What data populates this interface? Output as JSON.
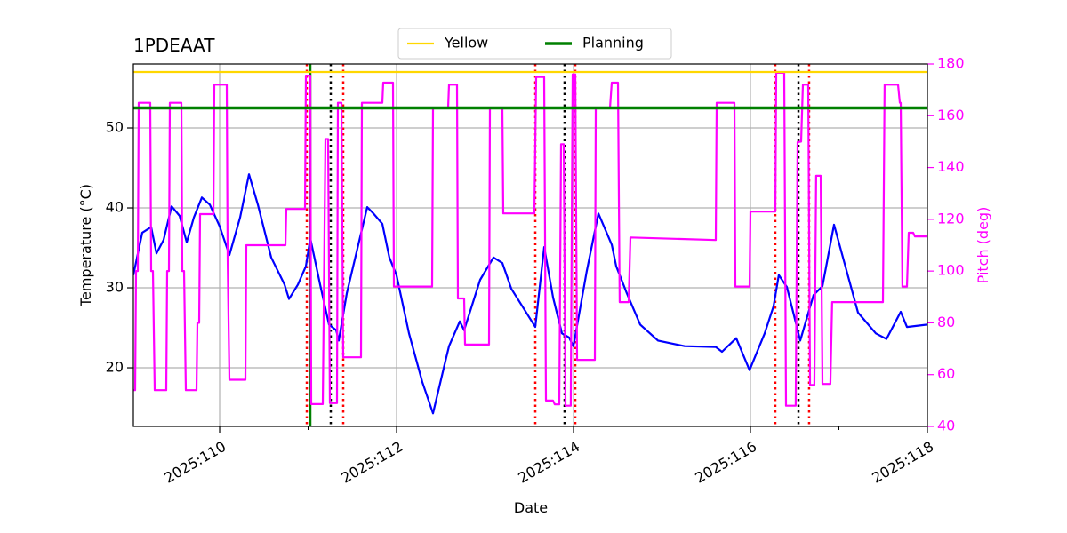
{
  "chart_data": {
    "type": "line",
    "title": "1PDEAAT",
    "xlabel": "Date",
    "ylabel": "Temperature (°C)",
    "y2label": "Pitch (deg)",
    "y2color": "#ff00ff",
    "xlim": [
      109.025,
      118
    ],
    "xticks": [
      {
        "value": 110,
        "label": "2025:110"
      },
      {
        "value": 112,
        "label": "2025:112"
      },
      {
        "value": 114,
        "label": "2025:114"
      },
      {
        "value": 116,
        "label": "2025:116"
      },
      {
        "value": 118,
        "label": "2025:118"
      }
    ],
    "xminorticks": [
      111,
      113,
      115,
      117
    ],
    "ylim": [
      12.67,
      58
    ],
    "yticks": [
      20,
      30,
      40,
      50
    ],
    "y2lim": [
      40,
      180
    ],
    "y2ticks": [
      40,
      60,
      80,
      100,
      120,
      140,
      160,
      180
    ],
    "grid": true,
    "legend": "upper center",
    "hlines": [
      {
        "name": "Yellow",
        "color": "#ffd700",
        "value": 57
      },
      {
        "name": "Planning",
        "color": "#008000",
        "value": 52.5
      }
    ],
    "vlines": [
      {
        "color": "#ff0000",
        "style": "dotted",
        "x": [
          110.985,
          111.397,
          113.568,
          114.02,
          116.281,
          116.663
        ]
      },
      {
        "color": "#000000",
        "style": "dotted",
        "x": [
          111.256,
          113.899,
          116.543
        ]
      },
      {
        "color": "#008000",
        "style": "solid",
        "x": [
          111.025
        ]
      }
    ],
    "lines": [
      {
        "color": "#0000ff",
        "axis": "y",
        "x": [
          109.025,
          109.126,
          109.226,
          109.286,
          109.367,
          109.457,
          109.548,
          109.628,
          109.708,
          109.799,
          109.889,
          110.0,
          110.11,
          110.231,
          110.332,
          110.432,
          110.583,
          110.734,
          110.784,
          110.884,
          110.975,
          111.025,
          111.136,
          111.236,
          111.317,
          111.347,
          111.437,
          111.568,
          111.668,
          111.739,
          111.839,
          111.919,
          111.999,
          112.141,
          112.291,
          112.412,
          112.543,
          112.593,
          112.714,
          112.764,
          112.945,
          113.095,
          113.196,
          113.296,
          113.568,
          113.668,
          113.769,
          113.869,
          113.949,
          113.999,
          114.15,
          114.281,
          114.432,
          114.482,
          114.603,
          114.754,
          114.955,
          115.256,
          115.608,
          115.678,
          115.839,
          115.99,
          116.161,
          116.261,
          116.321,
          116.412,
          116.563,
          116.714,
          116.814,
          116.945,
          117.065,
          117.216,
          117.417,
          117.538,
          117.698,
          117.769,
          118.0
        ],
        "values": [
          31.6,
          36.9,
          37.6,
          34.3,
          36,
          40.2,
          39,
          35.7,
          38.8,
          41.3,
          40.4,
          37.7,
          34.1,
          38.8,
          44.2,
          40.4,
          33.8,
          30.4,
          28.6,
          30.4,
          32.7,
          36.2,
          30.4,
          25.4,
          24.7,
          23.4,
          29.3,
          35.4,
          40.1,
          39.3,
          38,
          33.8,
          31.6,
          24.3,
          18.2,
          14.3,
          20.4,
          22.7,
          25.8,
          24.7,
          31,
          33.8,
          33.1,
          29.9,
          25.1,
          35.1,
          28.8,
          24.3,
          23.8,
          22.7,
          32.1,
          39.3,
          35.4,
          32.7,
          29.3,
          25.4,
          23.4,
          22.7,
          22.6,
          22,
          23.7,
          19.7,
          24.3,
          27.7,
          31.6,
          30.1,
          23.4,
          29.1,
          30.2,
          37.9,
          33,
          26.9,
          24.3,
          23.6,
          27,
          25.1,
          25.4
        ]
      },
      {
        "color": "#ff00ff",
        "axis": "y2",
        "x": [
          109.025,
          109.045,
          109.055,
          109.075,
          109.085,
          109.216,
          109.226,
          109.246,
          109.266,
          109.397,
          109.407,
          109.427,
          109.437,
          109.568,
          109.578,
          109.598,
          109.618,
          109.739,
          109.749,
          109.769,
          109.779,
          109.93,
          109.94,
          110.08,
          110.09,
          110.11,
          110.291,
          110.301,
          110.744,
          110.754,
          110.965,
          110.975,
          111.025,
          111.035,
          111.166,
          111.196,
          111.226,
          111.246,
          111.327,
          111.337,
          111.377,
          111.397,
          111.598,
          111.608,
          111.839,
          111.849,
          111.96,
          111.97,
          112.402,
          112.412,
          112.583,
          112.593,
          112.683,
          112.693,
          112.764,
          112.774,
          113.045,
          113.055,
          113.196,
          113.206,
          113.558,
          113.578,
          113.668,
          113.688,
          113.768,
          113.788,
          113.839,
          113.859,
          113.889,
          113.909,
          113.969,
          113.99,
          114.02,
          114.04,
          114.241,
          114.251,
          114.412,
          114.432,
          114.502,
          114.522,
          114.623,
          114.643,
          115.608,
          115.618,
          115.819,
          115.829,
          115.99,
          116.0,
          116.281,
          116.291,
          116.382,
          116.402,
          116.512,
          116.533,
          116.573,
          116.593,
          116.653,
          116.673,
          116.723,
          116.743,
          116.794,
          116.814,
          116.904,
          116.924,
          117.497,
          117.517,
          117.668,
          117.688,
          117.698,
          117.718,
          117.769,
          117.789,
          117.839,
          117.859,
          118.0
        ],
        "values": [
          54,
          54,
          100,
          100,
          165,
          165,
          100,
          100,
          54,
          54,
          100,
          100,
          165,
          165,
          100,
          100,
          54,
          54,
          80,
          80,
          122,
          122,
          172,
          172,
          105,
          58,
          58,
          110,
          110,
          124,
          124,
          175.5,
          175.5,
          48.6,
          48.6,
          151,
          151,
          49,
          49,
          165,
          165,
          66.7,
          66.7,
          165,
          165,
          172.8,
          172.8,
          94,
          94,
          163,
          163,
          172,
          172,
          89.4,
          89.4,
          71.6,
          71.6,
          163,
          163,
          122.3,
          122.3,
          175,
          175,
          50,
          50,
          48.5,
          48.5,
          149,
          149,
          48,
          48,
          176,
          176,
          65.7,
          65.7,
          163,
          163,
          172.8,
          172.8,
          88,
          88,
          113,
          112,
          165,
          165,
          94,
          94,
          123,
          123,
          176.6,
          176.6,
          48,
          48,
          149.8,
          150,
          172,
          172,
          56,
          56,
          136.8,
          136.8,
          56.4,
          56.4,
          88,
          88,
          172,
          172,
          165,
          165,
          94,
          94,
          114.8,
          114.8,
          113.4,
          113.4
        ]
      }
    ]
  }
}
